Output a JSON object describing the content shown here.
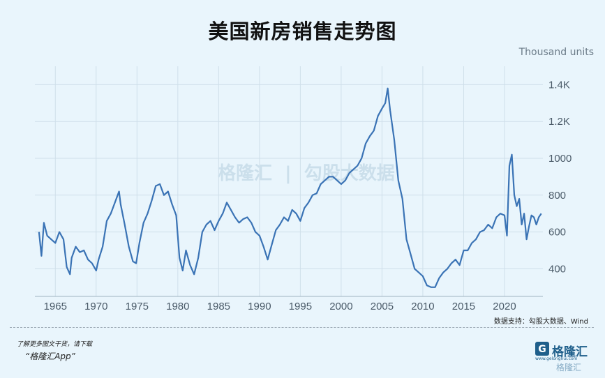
{
  "header": {
    "title": "美国新房销售走势图",
    "unit": "Thousand units"
  },
  "footer": {
    "source": "数据支持：勾股大数据、Wind",
    "promo": "了解更多图文干货，请下载",
    "promo_app": "“格隆汇App”",
    "brand": "格隆汇",
    "brand_sub": "www.gelonghui.com",
    "watermark_bottom": "格隆汇"
  },
  "watermark": {
    "brand": "格隆汇",
    "text": "勾股大数据"
  },
  "colors": {
    "line": "#3a73b5",
    "background": "#e9f5fc",
    "grid": "#cfdfea",
    "brand": "#1f5f8b"
  },
  "chart_data": {
    "type": "line",
    "title": "美国新房销售走势图",
    "ylabel": "Thousand units",
    "xlim": [
      1962.5,
      2024.7
    ],
    "ylim": [
      250,
      1500
    ],
    "y_ticks": [
      400,
      600,
      800,
      1000,
      1200,
      1400
    ],
    "y_tick_labels": [
      "400",
      "600",
      "800",
      "1000",
      "1.2K",
      "1.4K"
    ],
    "x_ticks": [
      1965,
      1970,
      1975,
      1980,
      1985,
      1990,
      1995,
      2000,
      2005,
      2010,
      2015,
      2020
    ],
    "x_tick_labels": [
      "1965",
      "1970",
      "1975",
      "1980",
      "1985",
      "1990",
      "1995",
      "2000",
      "2005",
      "2010",
      "2015",
      "2020"
    ],
    "grid": true,
    "y_axis_side": "right",
    "series": [
      {
        "x": [
          1963.0,
          1963.3,
          1963.6,
          1964.0,
          1964.5,
          1965.0,
          1965.5,
          1966.0,
          1966.4,
          1966.8,
          1967.0,
          1967.5,
          1968.0,
          1968.5,
          1969.0,
          1969.5,
          1970.0,
          1970.3,
          1970.8,
          1971.3,
          1971.8,
          1972.3,
          1972.8,
          1973.0,
          1973.5,
          1974.0,
          1974.5,
          1974.9,
          1975.3,
          1975.8,
          1976.3,
          1976.8,
          1977.3,
          1977.8,
          1978.3,
          1978.8,
          1979.3,
          1979.8,
          1980.2,
          1980.6,
          1981.0,
          1981.5,
          1982.0,
          1982.5,
          1983.0,
          1983.5,
          1984.0,
          1984.5,
          1985.0,
          1985.5,
          1986.0,
          1986.5,
          1987.0,
          1987.5,
          1988.0,
          1988.5,
          1989.0,
          1989.5,
          1990.0,
          1990.5,
          1991.0,
          1991.5,
          1992.0,
          1992.5,
          1993.0,
          1993.5,
          1994.0,
          1994.5,
          1995.0,
          1995.5,
          1996.0,
          1996.5,
          1997.0,
          1997.5,
          1998.0,
          1998.5,
          1999.0,
          1999.5,
          2000.0,
          2000.5,
          2001.0,
          2001.5,
          2002.0,
          2002.5,
          2003.0,
          2003.5,
          2004.0,
          2004.5,
          2005.0,
          2005.4,
          2005.7,
          2006.0,
          2006.5,
          2007.0,
          2007.5,
          2008.0,
          2008.5,
          2009.0,
          2009.5,
          2010.0,
          2010.5,
          2011.0,
          2011.5,
          2012.0,
          2012.5,
          2013.0,
          2013.5,
          2014.0,
          2014.5,
          2015.0,
          2015.5,
          2016.0,
          2016.5,
          2017.0,
          2017.5,
          2018.0,
          2018.5,
          2019.0,
          2019.5,
          2020.0,
          2020.3,
          2020.6,
          2020.9,
          2021.2,
          2021.5,
          2021.8,
          2022.1,
          2022.4,
          2022.7,
          2023.0,
          2023.3,
          2023.6,
          2023.9,
          2024.2,
          2024.5
        ],
        "y": [
          600,
          470,
          650,
          580,
          560,
          540,
          600,
          560,
          410,
          370,
          460,
          520,
          490,
          500,
          450,
          430,
          390,
          450,
          520,
          660,
          700,
          760,
          820,
          750,
          640,
          520,
          440,
          430,
          540,
          650,
          700,
          770,
          850,
          860,
          800,
          820,
          750,
          690,
          460,
          390,
          500,
          420,
          370,
          460,
          600,
          640,
          660,
          610,
          660,
          700,
          760,
          720,
          680,
          650,
          670,
          680,
          650,
          600,
          580,
          520,
          450,
          530,
          610,
          640,
          680,
          660,
          720,
          700,
          660,
          730,
          760,
          800,
          810,
          860,
          880,
          900,
          900,
          880,
          860,
          880,
          920,
          940,
          960,
          1000,
          1080,
          1120,
          1150,
          1230,
          1270,
          1300,
          1380,
          1260,
          1100,
          880,
          780,
          560,
          480,
          400,
          380,
          360,
          310,
          300,
          300,
          350,
          380,
          400,
          430,
          450,
          420,
          500,
          500,
          540,
          560,
          600,
          610,
          640,
          620,
          680,
          700,
          690,
          580,
          960,
          1020,
          800,
          740,
          780,
          640,
          700,
          560,
          630,
          690,
          680,
          640,
          680,
          700
        ]
      }
    ]
  }
}
